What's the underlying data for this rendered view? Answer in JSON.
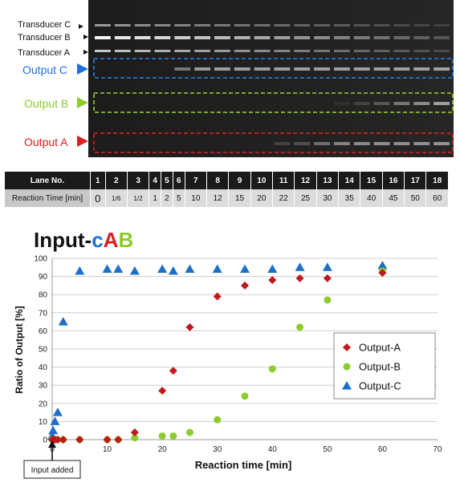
{
  "gel": {
    "transducer_labels": [
      "Transducer C",
      "Transducer B",
      "Transducer A"
    ],
    "output_labels": [
      {
        "text": "Output C",
        "color": "#1e6fd9"
      },
      {
        "text": "Output B",
        "color": "#8ccc2e"
      },
      {
        "text": "Output A",
        "color": "#d92020"
      }
    ],
    "lane_count": 18
  },
  "lane_table": {
    "lane_header": "Lane No.",
    "time_header": "Reaction Time [min]",
    "lanes": [
      "1",
      "2",
      "3",
      "4",
      "5",
      "6",
      "7",
      "8",
      "9",
      "10",
      "11",
      "12",
      "13",
      "14",
      "15",
      "16",
      "17",
      "18"
    ],
    "times": [
      "0",
      "1/6",
      "1/2",
      "1",
      "2",
      "5",
      "10",
      "12",
      "15",
      "20",
      "22",
      "25",
      "30",
      "35",
      "40",
      "45",
      "50",
      "60"
    ]
  },
  "chart_data": {
    "type": "scatter",
    "title_parts": [
      {
        "text": "Input-",
        "color": "#111111"
      },
      {
        "text": "c",
        "color": "#1e6fd9"
      },
      {
        "text": "A",
        "color": "#d92020"
      },
      {
        "text": "B",
        "color": "#8ccc2e"
      }
    ],
    "xlabel": "Reaction time [min]",
    "ylabel": "Ratio of  Output [%]",
    "xlim": [
      0,
      70
    ],
    "ylim": [
      0,
      100
    ],
    "xticks": [
      0,
      10,
      20,
      30,
      40,
      50,
      60,
      70
    ],
    "yticks": [
      0,
      10,
      20,
      30,
      40,
      50,
      60,
      70,
      80,
      90,
      100
    ],
    "grid": "horizontal",
    "legend_position": "right",
    "annotation": "Input added",
    "series": [
      {
        "name": "Output-A",
        "marker": "diamond",
        "color": "#c0181c",
        "points": [
          [
            0,
            0
          ],
          [
            0.17,
            0
          ],
          [
            0.5,
            0
          ],
          [
            1,
            0
          ],
          [
            2,
            0
          ],
          [
            5,
            0
          ],
          [
            10,
            0
          ],
          [
            12,
            0
          ],
          [
            15,
            4
          ],
          [
            20,
            27
          ],
          [
            22,
            38
          ],
          [
            25,
            62
          ],
          [
            30,
            79
          ],
          [
            35,
            85
          ],
          [
            40,
            88
          ],
          [
            45,
            89
          ],
          [
            50,
            89
          ],
          [
            60,
            92
          ]
        ]
      },
      {
        "name": "Output-B",
        "marker": "circle",
        "color": "#8ccc2e",
        "points": [
          [
            0,
            0
          ],
          [
            0.17,
            0
          ],
          [
            0.5,
            0
          ],
          [
            1,
            0
          ],
          [
            2,
            0
          ],
          [
            5,
            0
          ],
          [
            10,
            0
          ],
          [
            12,
            0
          ],
          [
            15,
            1
          ],
          [
            20,
            2
          ],
          [
            22,
            2
          ],
          [
            25,
            4
          ],
          [
            30,
            11
          ],
          [
            35,
            24
          ],
          [
            40,
            39
          ],
          [
            45,
            62
          ],
          [
            50,
            77
          ],
          [
            60,
            93
          ]
        ]
      },
      {
        "name": "Output-C",
        "marker": "triangle",
        "color": "#1e6fc8",
        "points": [
          [
            0,
            2
          ],
          [
            0.17,
            5
          ],
          [
            0.5,
            10
          ],
          [
            1,
            15
          ],
          [
            2,
            65
          ],
          [
            5,
            93
          ],
          [
            10,
            94
          ],
          [
            12,
            94
          ],
          [
            15,
            93
          ],
          [
            20,
            94
          ],
          [
            22,
            93
          ],
          [
            25,
            94
          ],
          [
            30,
            94
          ],
          [
            35,
            94
          ],
          [
            40,
            94
          ],
          [
            45,
            95
          ],
          [
            50,
            95
          ],
          [
            60,
            96
          ]
        ]
      }
    ]
  }
}
